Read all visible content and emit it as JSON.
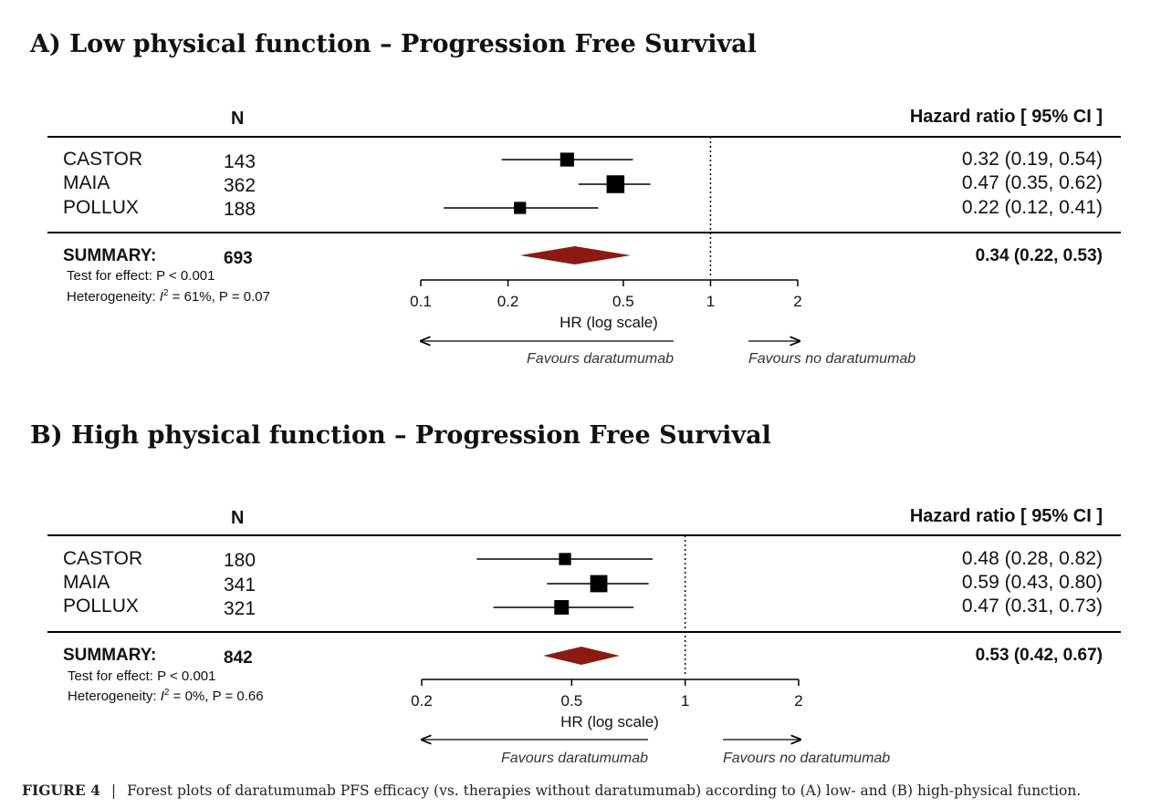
{
  "caption": {
    "label": "FIGURE 4",
    "separator": "|",
    "text": "Forest plots of daratumumab PFS efficacy (vs. therapies without daratumumab) according to (A) low- and (B) high-physical function."
  },
  "colors": {
    "diamond": "#8b1a12",
    "ink": "#000000"
  },
  "chart_data": [
    {
      "type": "forest",
      "title": "A) Low physical function – Progression Free Survival",
      "n_header": "N",
      "hr_header": "Hazard ratio [ 95% CI ]",
      "xlabel": "HR (log scale)",
      "xscale": "log",
      "xlim": [
        0.1,
        2
      ],
      "ticks": [
        {
          "v": 0.1,
          "label": "0.1"
        },
        {
          "v": 0.2,
          "label": "0.2"
        },
        {
          "v": 0.5,
          "label": "0.5"
        },
        {
          "v": 1,
          "label": "1"
        },
        {
          "v": 2,
          "label": "2"
        }
      ],
      "reference_line": 1,
      "studies": [
        {
          "name": "CASTOR",
          "n": "143",
          "hr": 0.32,
          "lo": 0.19,
          "hi": 0.54,
          "weight": 0.3,
          "text": "0.32 (0.19, 0.54)"
        },
        {
          "name": "MAIA",
          "n": "362",
          "hr": 0.47,
          "lo": 0.35,
          "hi": 0.62,
          "weight": 0.48,
          "text": "0.47 (0.35, 0.62)"
        },
        {
          "name": "POLLUX",
          "n": "188",
          "hr": 0.22,
          "lo": 0.12,
          "hi": 0.41,
          "weight": 0.22,
          "text": "0.22 (0.12, 0.41)"
        }
      ],
      "summary": {
        "label": "SUMMARY:",
        "n": "693",
        "hr": 0.34,
        "lo": 0.22,
        "hi": 0.53,
        "text": "0.34 (0.22, 0.53)"
      },
      "test_effect": "Test for effect: P < 0.001",
      "heterogeneity_prefix": "Heterogeneity: ",
      "heterogeneity_symbol": "I",
      "heterogeneity_sup": "2",
      "heterogeneity_suffix": " = 61%, P = 0.07",
      "favours_left": "Favours daratumumab",
      "favours_right": "Favours no daratumumab"
    },
    {
      "type": "forest",
      "title": "B) High physical function – Progression Free Survival",
      "n_header": "N",
      "hr_header": "Hazard ratio [ 95% CI ]",
      "xlabel": "HR (log scale)",
      "xscale": "log",
      "xlim": [
        0.2,
        2
      ],
      "ticks": [
        {
          "v": 0.2,
          "label": "0.2"
        },
        {
          "v": 0.5,
          "label": "0.5"
        },
        {
          "v": 1,
          "label": "1"
        },
        {
          "v": 2,
          "label": "2"
        }
      ],
      "reference_line": 1,
      "studies": [
        {
          "name": "CASTOR",
          "n": "180",
          "hr": 0.48,
          "lo": 0.28,
          "hi": 0.82,
          "weight": 0.22,
          "text": "0.48 (0.28, 0.82)"
        },
        {
          "name": "MAIA",
          "n": "341",
          "hr": 0.59,
          "lo": 0.43,
          "hi": 0.8,
          "weight": 0.45,
          "text": "0.59 (0.43, 0.80)"
        },
        {
          "name": "POLLUX",
          "n": "321",
          "hr": 0.47,
          "lo": 0.31,
          "hi": 0.73,
          "weight": 0.33,
          "text": "0.47 (0.31, 0.73)"
        }
      ],
      "summary": {
        "label": "SUMMARY:",
        "n": "842",
        "hr": 0.53,
        "lo": 0.42,
        "hi": 0.67,
        "text": "0.53 (0.42, 0.67)"
      },
      "test_effect": "Test for effect: P < 0.001",
      "heterogeneity_prefix": "Heterogeneity: ",
      "heterogeneity_symbol": "I",
      "heterogeneity_sup": "2",
      "heterogeneity_suffix": " = 0%, P = 0.66",
      "favours_left": "Favours daratumumab",
      "favours_right": "Favours no daratumumab"
    }
  ]
}
